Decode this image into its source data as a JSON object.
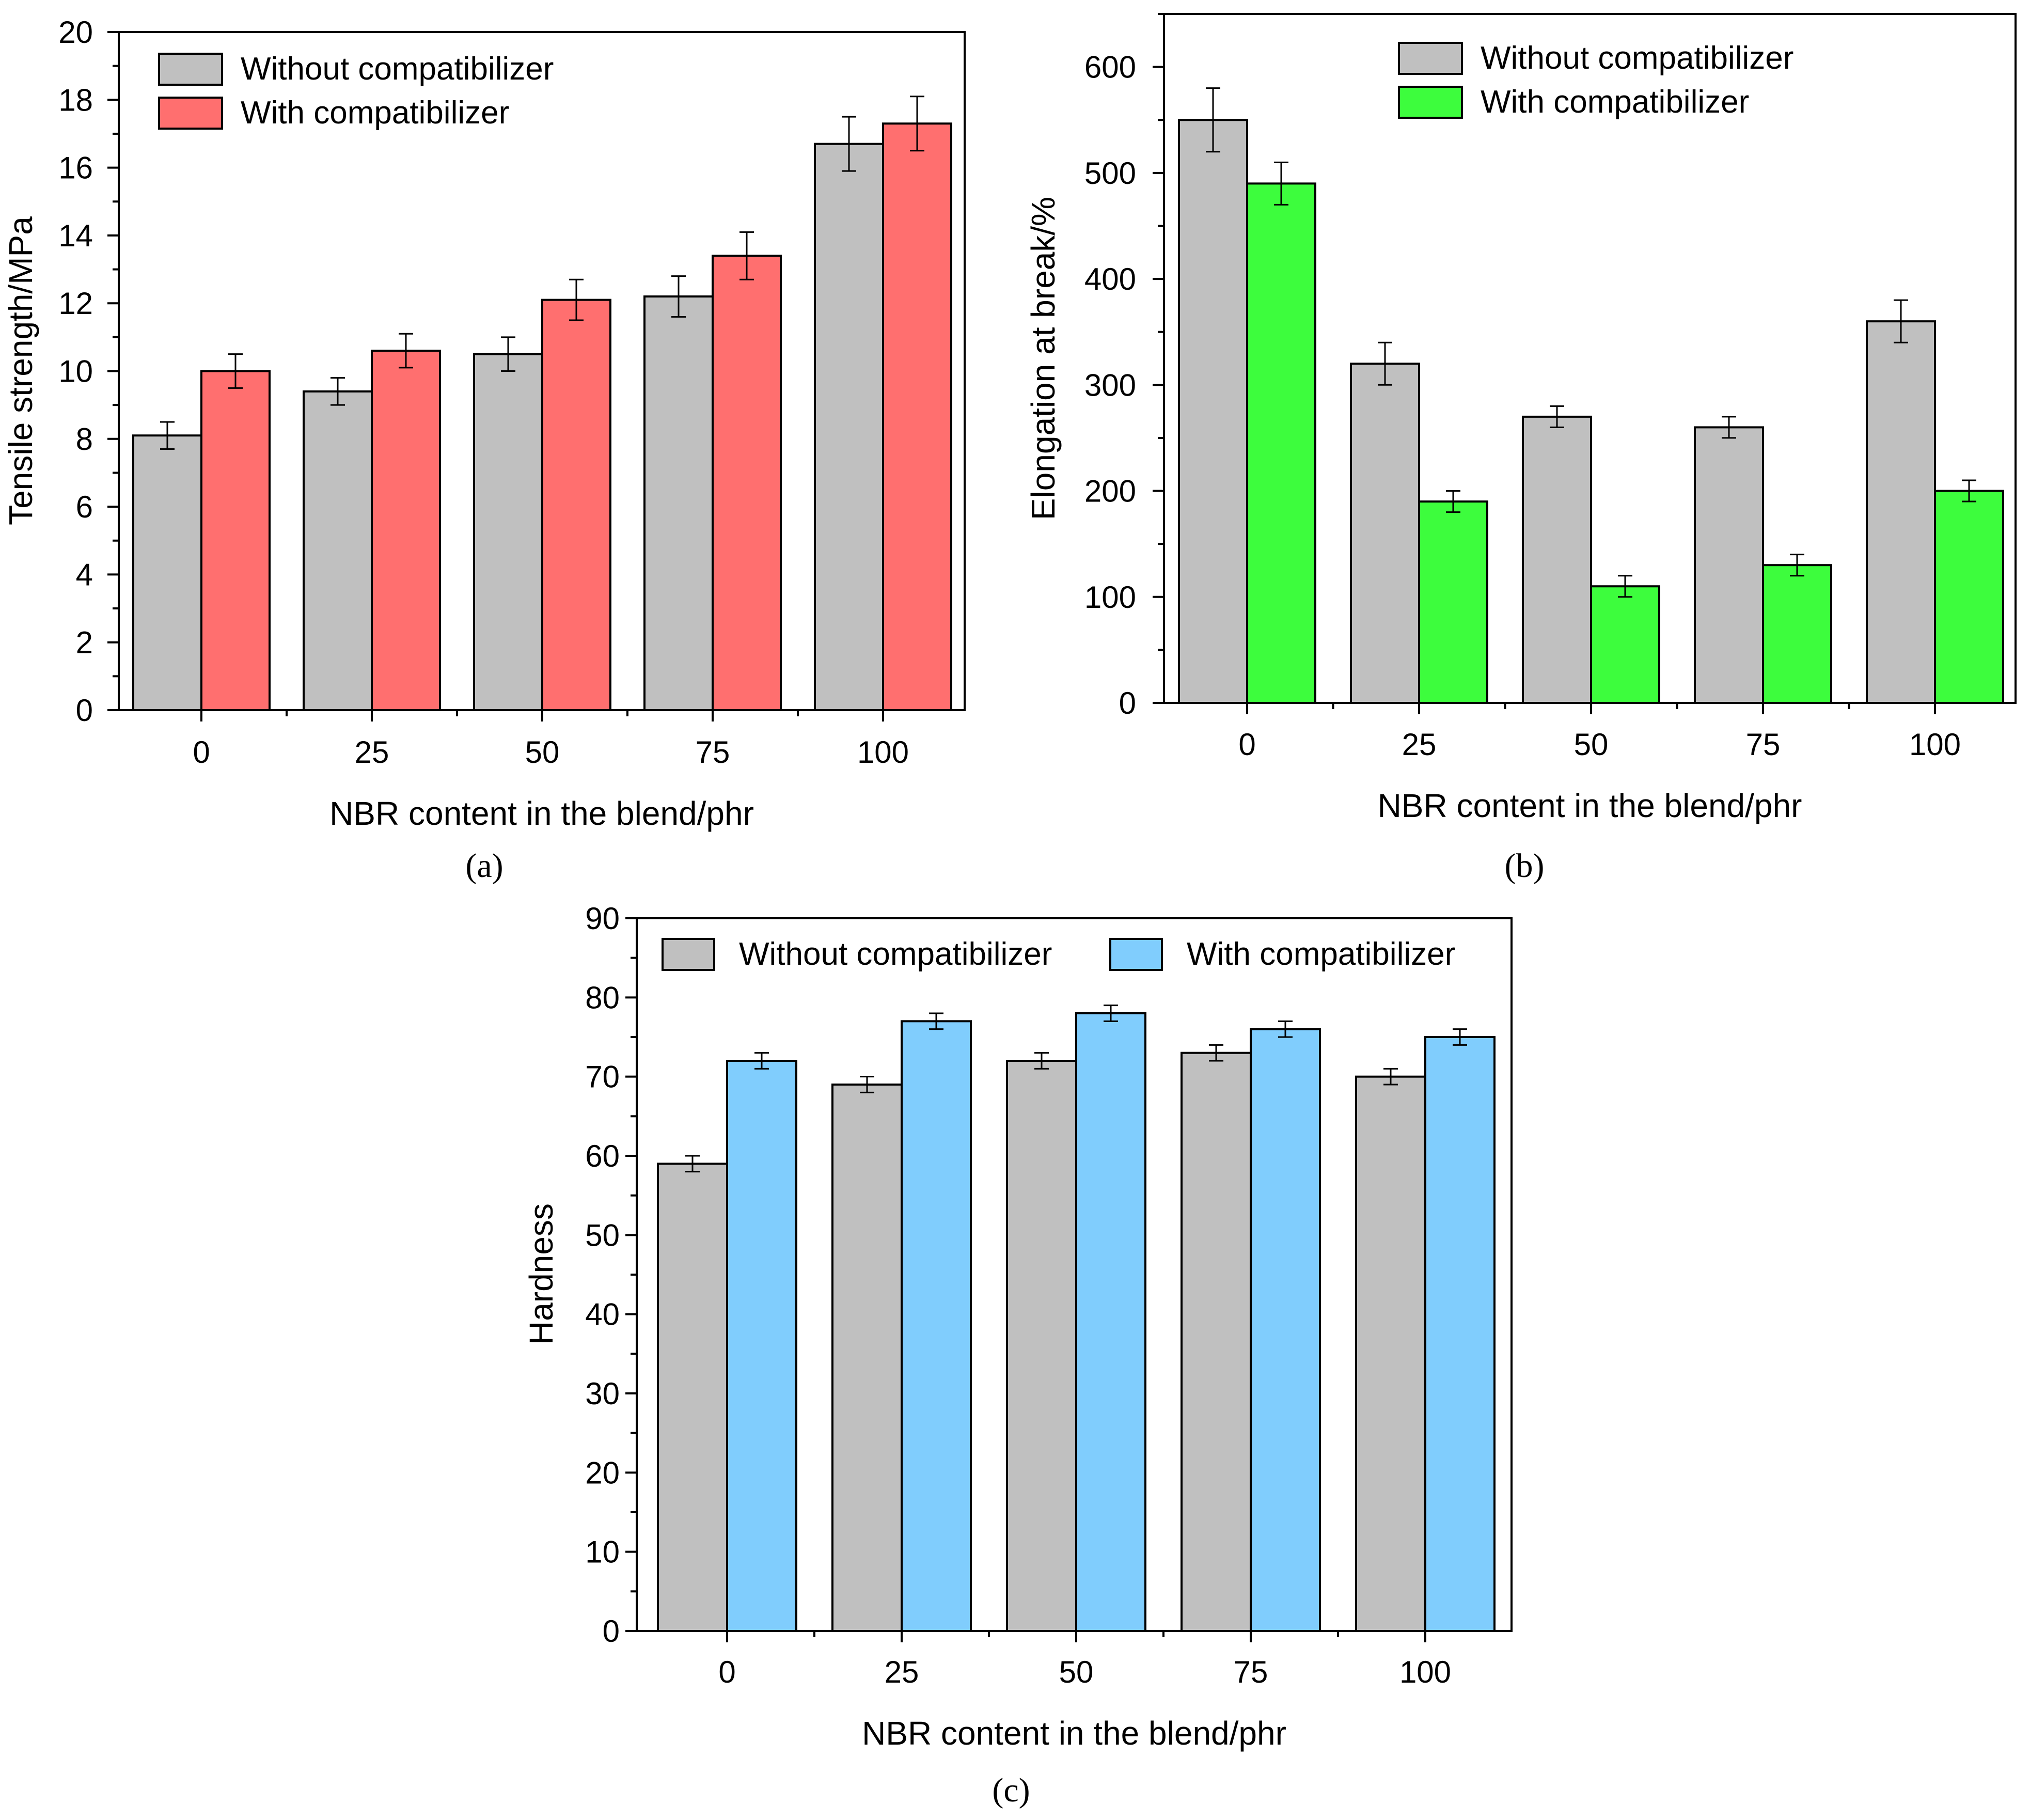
{
  "chart_data": [
    {
      "id": "a",
      "type": "bar",
      "caption": "(a)",
      "xlabel": "NBR content in the blend/phr",
      "ylabel": "Tensile strength/MPa",
      "categories": [
        "0",
        "25",
        "50",
        "75",
        "100"
      ],
      "ylim": [
        0,
        20
      ],
      "yticks": [
        0,
        2,
        4,
        6,
        8,
        10,
        12,
        14,
        16,
        18,
        20
      ],
      "ytick_labels": [
        "0",
        "2",
        "4",
        "6",
        "8",
        "10",
        "12",
        "14",
        "16",
        "18",
        "20"
      ],
      "grid": false,
      "legend_position": "top-left",
      "series": [
        {
          "name": "Without compatibilizer",
          "color": "#c0c0c0",
          "values": [
            8.1,
            9.4,
            10.5,
            12.2,
            16.7
          ],
          "errors": [
            0.4,
            0.4,
            0.5,
            0.6,
            0.8
          ]
        },
        {
          "name": "With compatibilizer",
          "color": "#ff6f6f",
          "values": [
            10.0,
            10.6,
            12.1,
            13.4,
            17.3
          ],
          "errors": [
            0.5,
            0.5,
            0.6,
            0.7,
            0.8
          ]
        }
      ]
    },
    {
      "id": "b",
      "type": "bar",
      "caption": "(b)",
      "xlabel": "NBR content in the blend/phr",
      "ylabel": "Elongation at break/%",
      "categories": [
        "0",
        "25",
        "50",
        "75",
        "100"
      ],
      "ylim": [
        0,
        650
      ],
      "yticks": [
        0,
        100,
        200,
        300,
        400,
        500,
        600
      ],
      "ytick_labels": [
        "0",
        "100",
        "200",
        "300",
        "400",
        "500",
        "600"
      ],
      "grid": false,
      "legend_position": "top-center",
      "series": [
        {
          "name": "Without compatibilizer",
          "color": "#c0c0c0",
          "values": [
            550,
            320,
            270,
            260,
            360
          ],
          "errors": [
            30,
            20,
            10,
            10,
            20
          ]
        },
        {
          "name": "With compatibilizer",
          "color": "#3dfd3d",
          "values": [
            490,
            190,
            110,
            130,
            200
          ],
          "errors": [
            20,
            10,
            10,
            10,
            10
          ]
        }
      ]
    },
    {
      "id": "c",
      "type": "bar",
      "caption": "(c)",
      "xlabel": "NBR content in the blend/phr",
      "ylabel": "Hardness",
      "categories": [
        "0",
        "25",
        "50",
        "75",
        "100"
      ],
      "ylim": [
        0,
        90
      ],
      "yticks": [
        0,
        10,
        20,
        30,
        40,
        50,
        60,
        70,
        80,
        90
      ],
      "ytick_labels": [
        "0",
        "10",
        "20",
        "30",
        "40",
        "50",
        "60",
        "70",
        "80",
        "90"
      ],
      "grid": false,
      "legend_position": "top, single row",
      "series": [
        {
          "name": "Without compatibilizer",
          "color": "#c0c0c0",
          "values": [
            59,
            69,
            72,
            73,
            70
          ],
          "errors": [
            1,
            1,
            1,
            1,
            1
          ]
        },
        {
          "name": "With compatibilizer",
          "color": "#80cdfd",
          "values": [
            72,
            77,
            78,
            76,
            75
          ],
          "errors": [
            1,
            1,
            1,
            1,
            1
          ]
        }
      ]
    }
  ]
}
